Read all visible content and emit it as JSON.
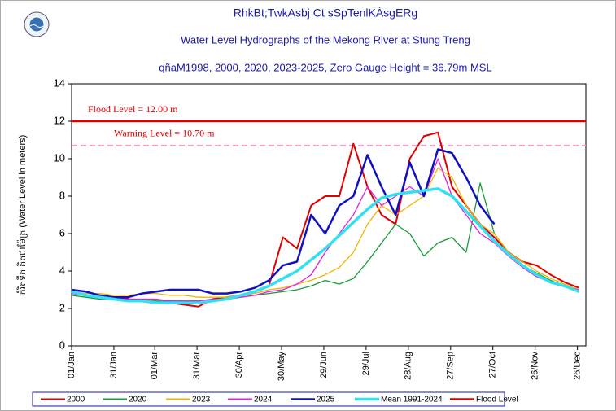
{
  "chart_data": {
    "type": "line",
    "title": "RhkBt;TwkAsbj Ct sSpTenlKÁsgERg",
    "subtitle": "Water Level Hydrographs of  the Mekong River at Stung Treng",
    "subtitle2": "qñaM1998, 2000, 2020, 2023-2025, Zero Gauge Height = 36.79m MSL",
    "ylabel": "កំរិតទឹក គិតជាម៉ែត្រ (Water Level in meters)",
    "x": [
      0,
      10,
      20,
      30,
      40,
      50,
      60,
      70,
      80,
      90,
      100,
      110,
      120,
      130,
      140,
      150,
      160,
      170,
      180,
      190,
      200,
      210,
      220,
      230,
      240,
      250,
      260,
      270,
      280,
      290,
      300,
      310,
      320,
      330,
      340,
      350,
      360
    ],
    "xlim": [
      0,
      365
    ],
    "xticks": [
      {
        "value": 0,
        "label": "01/Jan"
      },
      {
        "value": 30,
        "label": "31/Jan"
      },
      {
        "value": 59,
        "label": "01/Mar"
      },
      {
        "value": 89,
        "label": "31/Mar"
      },
      {
        "value": 119,
        "label": "30/Apr"
      },
      {
        "value": 149,
        "label": "30/May"
      },
      {
        "value": 179,
        "label": "29/Jun"
      },
      {
        "value": 209,
        "label": "29/Jul"
      },
      {
        "value": 239,
        "label": "28/Aug"
      },
      {
        "value": 269,
        "label": "27/Sep"
      },
      {
        "value": 299,
        "label": "27/Oct"
      },
      {
        "value": 329,
        "label": "26/Nov"
      },
      {
        "value": 359,
        "label": "26/Dec"
      }
    ],
    "ylim": [
      0,
      14
    ],
    "yticks": [
      0,
      2,
      4,
      6,
      8,
      10,
      12,
      14
    ],
    "grid": false,
    "legend": "bottom",
    "series": [
      {
        "name": "2000",
        "color": "#e00000",
        "width": 2,
        "values": [
          3.0,
          2.9,
          2.7,
          2.6,
          2.5,
          2.4,
          2.3,
          2.3,
          2.2,
          2.1,
          2.5,
          2.6,
          2.7,
          2.9,
          3.2,
          5.8,
          5.2,
          7.5,
          8.0,
          8.0,
          10.8,
          8.5,
          7.0,
          6.5,
          10.0,
          11.2,
          11.4,
          8.5,
          7.5,
          6.5,
          5.8,
          5.0,
          4.5,
          4.3,
          3.8,
          3.4,
          3.1
        ]
      },
      {
        "name": "2020",
        "color": "#1a9a3a",
        "width": 1.3,
        "values": [
          2.7,
          2.6,
          2.5,
          2.5,
          2.4,
          2.4,
          2.4,
          2.4,
          2.4,
          2.4,
          2.4,
          2.5,
          2.6,
          2.7,
          2.8,
          2.9,
          3.0,
          3.2,
          3.5,
          3.3,
          3.6,
          4.5,
          5.5,
          6.5,
          6.0,
          4.8,
          5.5,
          5.8,
          5.0,
          8.7,
          6.0,
          5.0,
          4.3,
          3.9,
          3.5,
          3.2,
          3.0
        ]
      },
      {
        "name": "2023",
        "color": "#f0b400",
        "width": 1.3,
        "values": [
          2.9,
          2.8,
          2.8,
          2.7,
          2.7,
          2.8,
          2.8,
          2.7,
          2.7,
          2.6,
          2.6,
          2.6,
          2.7,
          2.8,
          3.0,
          3.1,
          3.3,
          3.5,
          3.8,
          4.2,
          5.0,
          6.5,
          7.5,
          7.0,
          7.5,
          8.0,
          9.5,
          9.0,
          7.5,
          6.5,
          6.0,
          5.0,
          4.5,
          4.0,
          3.6,
          3.3,
          3.0
        ]
      },
      {
        "name": "2024",
        "color": "#e020e0",
        "width": 1.3,
        "values": [
          2.8,
          2.7,
          2.6,
          2.5,
          2.5,
          2.5,
          2.5,
          2.4,
          2.4,
          2.4,
          2.5,
          2.5,
          2.6,
          2.7,
          2.9,
          3.0,
          3.3,
          3.8,
          5.0,
          6.0,
          7.0,
          8.5,
          7.5,
          8.0,
          8.5,
          8.0,
          10.0,
          8.0,
          7.0,
          6.0,
          5.5,
          4.8,
          4.2,
          3.7,
          3.4,
          3.2,
          3.0
        ]
      },
      {
        "name": "2025",
        "color": "#1010c0",
        "width": 2.5,
        "values": [
          3.0,
          2.9,
          2.7,
          2.6,
          2.6,
          2.8,
          2.9,
          3.0,
          3.0,
          3.0,
          2.8,
          2.8,
          2.9,
          3.1,
          3.5,
          4.3,
          4.5,
          7.0,
          6.0,
          7.5,
          8.0,
          10.2,
          8.5,
          7.0,
          9.8,
          8.0,
          10.5,
          10.3,
          9.0,
          7.5,
          6.5,
          null,
          null,
          null,
          null,
          null,
          null
        ]
      },
      {
        "name": "Mean 1991-2024",
        "color": "#33e0f0",
        "width": 3.5,
        "values": [
          2.9,
          2.7,
          2.6,
          2.5,
          2.4,
          2.4,
          2.3,
          2.3,
          2.3,
          2.3,
          2.4,
          2.5,
          2.7,
          2.9,
          3.2,
          3.6,
          4.0,
          4.6,
          5.2,
          5.9,
          6.6,
          7.3,
          7.9,
          8.1,
          8.2,
          8.3,
          8.4,
          8.0,
          7.2,
          6.4,
          5.6,
          4.9,
          4.3,
          3.8,
          3.4,
          3.2,
          2.9
        ]
      }
    ],
    "thresholds": [
      {
        "name": "Flood Level",
        "value": 12,
        "label": "Flood Level = 12.00 m",
        "color": "#e00000",
        "dashed": false
      },
      {
        "value": 10.7,
        "label": "Warning Level = 10.70 m",
        "color": "#f4a0c8",
        "dashed": true
      }
    ]
  }
}
